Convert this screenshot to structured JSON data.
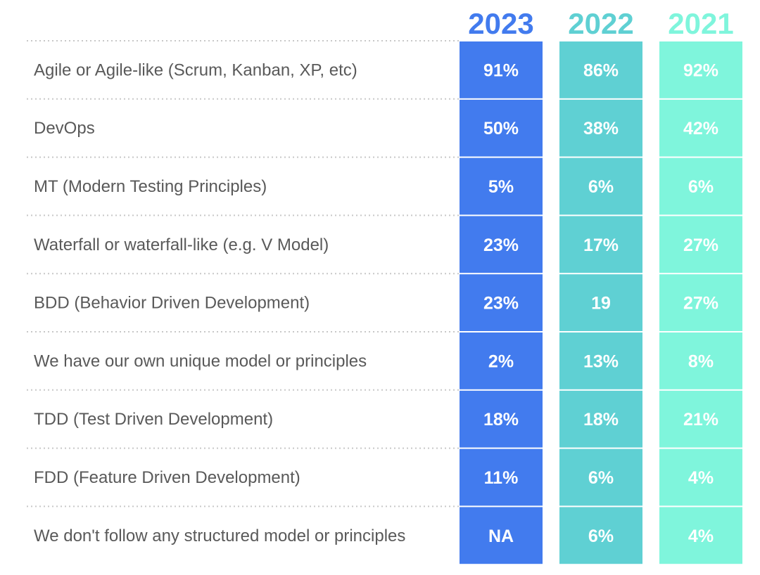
{
  "chart_data": {
    "type": "table",
    "columns": [
      {
        "name": "2023",
        "color": "#427bee"
      },
      {
        "name": "2022",
        "color": "#5fd0d3"
      },
      {
        "name": "2021",
        "color": "#7ff5dc"
      }
    ],
    "rows": [
      {
        "label": "Agile or Agile-like (Scrum, Kanban, XP, etc)",
        "values": [
          "91%",
          "86%",
          "92%"
        ]
      },
      {
        "label": "DevOps",
        "values": [
          "50%",
          "38%",
          "42%"
        ]
      },
      {
        "label": "MT (Modern Testing Principles)",
        "values": [
          "5%",
          "6%",
          "6%"
        ]
      },
      {
        "label": "Waterfall or waterfall-like (e.g. V Model)",
        "values": [
          "23%",
          "17%",
          "27%"
        ]
      },
      {
        "label": "BDD (Behavior Driven Development)",
        "values": [
          "23%",
          "19",
          "27%"
        ]
      },
      {
        "label": "We have our own unique model or principles",
        "values": [
          "2%",
          "13%",
          "8%"
        ]
      },
      {
        "label": "TDD (Test Driven Development)",
        "values": [
          "18%",
          "18%",
          "21%"
        ]
      },
      {
        "label": "FDD (Feature Driven Development)",
        "values": [
          "11%",
          "6%",
          "4%"
        ]
      },
      {
        "label": "We don't follow any structured model or principles",
        "values": [
          "NA",
          "6%",
          "4%"
        ]
      }
    ],
    "colors": {
      "label_text": "#595959",
      "divider": "#c8c8c8",
      "cell_text": "#ffffff"
    }
  }
}
